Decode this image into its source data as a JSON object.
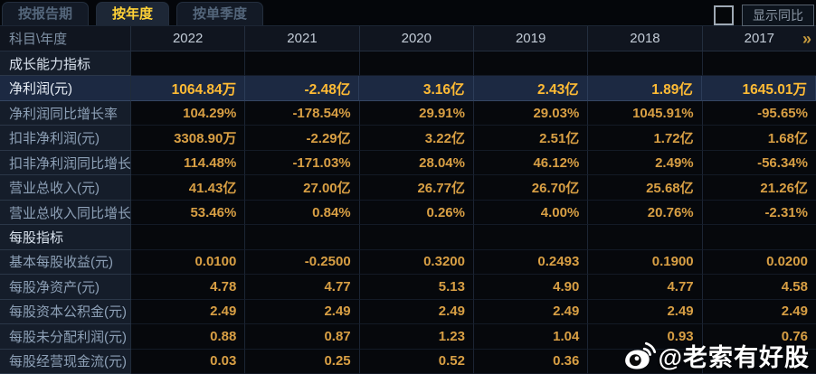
{
  "tabs": [
    {
      "id": "by-report-period",
      "label": "按报告期",
      "active": false
    },
    {
      "id": "by-year",
      "label": "按年度",
      "active": true
    },
    {
      "id": "by-quarter",
      "label": "按单季度",
      "active": false
    }
  ],
  "controls": {
    "show_yoy_label": "显示同比",
    "checkbox_checked": false
  },
  "colors": {
    "accent_gold": "#d89f44",
    "highlight_gold": "#ffbb35",
    "active_tab_text": "#ffd237",
    "highlight_row_bg": "#1c2942",
    "label_column_bg": "#151d2a"
  },
  "table": {
    "corner_label": "科目\\年度",
    "years": [
      "2022",
      "2021",
      "2020",
      "2019",
      "2018",
      "2017"
    ],
    "more_icon": "»",
    "rows": [
      {
        "type": "section",
        "label": "成长能力指标",
        "values": [
          "",
          "",
          "",
          "",
          "",
          ""
        ]
      },
      {
        "type": "highlight",
        "label": "净利润(元)",
        "values": [
          "1064.84万",
          "-2.48亿",
          "3.16亿",
          "2.43亿",
          "1.89亿",
          "1645.01万"
        ]
      },
      {
        "type": "data",
        "label": "净利润同比增长率",
        "values": [
          "104.29%",
          "-178.54%",
          "29.91%",
          "29.03%",
          "1045.91%",
          "-95.65%"
        ]
      },
      {
        "type": "data",
        "label": "扣非净利润(元)",
        "values": [
          "3308.90万",
          "-2.29亿",
          "3.22亿",
          "2.51亿",
          "1.72亿",
          "1.68亿"
        ]
      },
      {
        "type": "data",
        "label": "扣非净利润同比增长率",
        "values": [
          "114.48%",
          "-171.03%",
          "28.04%",
          "46.12%",
          "2.49%",
          "-56.34%"
        ]
      },
      {
        "type": "data",
        "label": "营业总收入(元)",
        "values": [
          "41.43亿",
          "27.00亿",
          "26.77亿",
          "26.70亿",
          "25.68亿",
          "21.26亿"
        ]
      },
      {
        "type": "data",
        "label": "营业总收入同比增长率",
        "values": [
          "53.46%",
          "0.84%",
          "0.26%",
          "4.00%",
          "20.76%",
          "-2.31%"
        ]
      },
      {
        "type": "section",
        "label": "每股指标",
        "values": [
          "",
          "",
          "",
          "",
          "",
          ""
        ]
      },
      {
        "type": "data",
        "label": "基本每股收益(元)",
        "values": [
          "0.0100",
          "-0.2500",
          "0.3200",
          "0.2493",
          "0.1900",
          "0.0200"
        ]
      },
      {
        "type": "data",
        "label": "每股净资产(元)",
        "values": [
          "4.78",
          "4.77",
          "5.13",
          "4.90",
          "4.77",
          "4.58"
        ]
      },
      {
        "type": "data",
        "label": "每股资本公积金(元)",
        "values": [
          "2.49",
          "2.49",
          "2.49",
          "2.49",
          "2.49",
          "2.49"
        ]
      },
      {
        "type": "data",
        "label": "每股未分配利润(元)",
        "values": [
          "0.88",
          "0.87",
          "1.23",
          "1.04",
          "0.93",
          "0.76"
        ]
      },
      {
        "type": "data",
        "label": "每股经营现金流(元)",
        "values": [
          "0.03",
          "0.25",
          "0.52",
          "0.36",
          "",
          ""
        ]
      }
    ]
  },
  "watermark": {
    "handle": "@老索有好股"
  }
}
